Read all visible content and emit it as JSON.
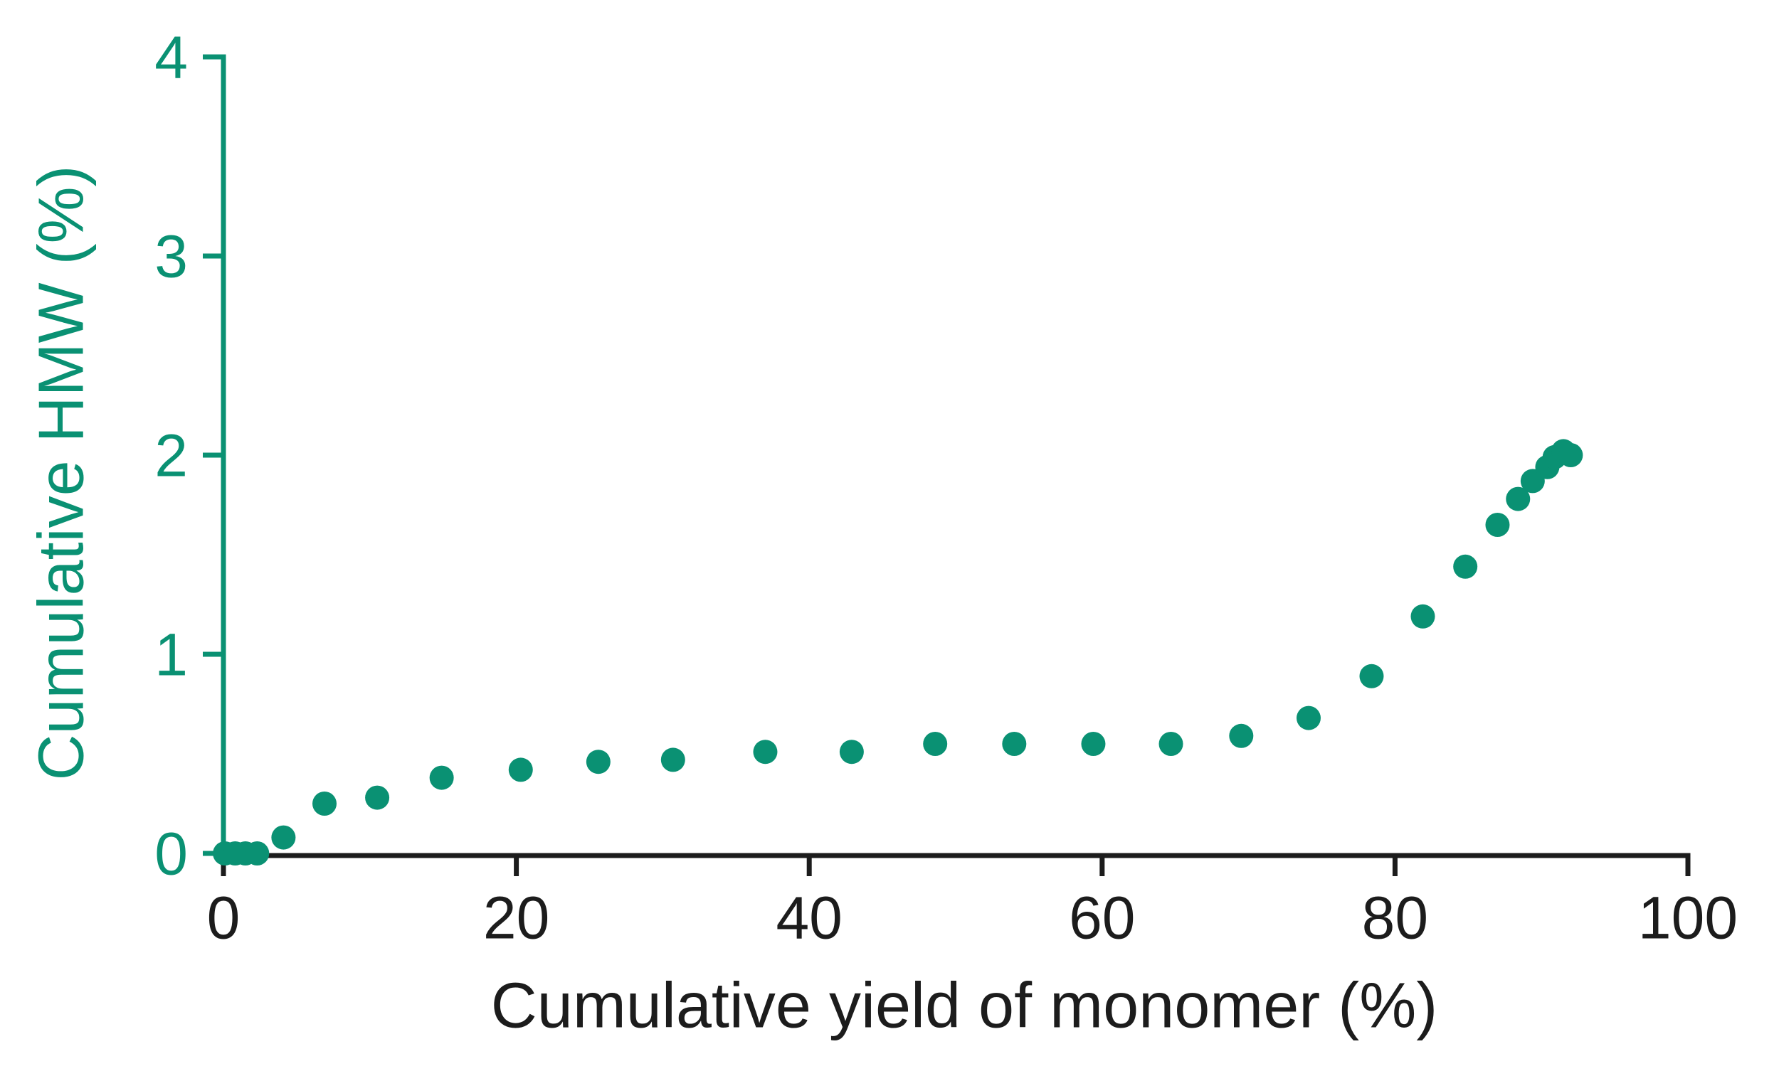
{
  "chart_data": {
    "type": "scatter",
    "title": "",
    "xlabel": "Cumulative yield of monomer (%)",
    "ylabel": "Cumulative HMW (%)",
    "xlim": [
      0,
      100
    ],
    "ylim": [
      0,
      4
    ],
    "xticks": [
      "0",
      "20",
      "40",
      "60",
      "80",
      "100"
    ],
    "yticks": [
      "0",
      "1",
      "2",
      "3",
      "4"
    ],
    "grid": false,
    "legend": null,
    "colors": {
      "accent_teal": "#0a9173",
      "axis_black": "#1c1c1c",
      "background": "#ffffff"
    },
    "series": [
      {
        "name": "Cumulative HMW",
        "marker": "circle",
        "marker_color": "#0a9173",
        "points": [
          [
            0.1,
            0.0
          ],
          [
            0.8,
            0.0
          ],
          [
            1.5,
            0.0
          ],
          [
            2.3,
            0.0
          ],
          [
            4.1,
            0.08
          ],
          [
            6.9,
            0.25
          ],
          [
            10.5,
            0.28
          ],
          [
            14.9,
            0.38
          ],
          [
            20.3,
            0.42
          ],
          [
            25.6,
            0.46
          ],
          [
            30.7,
            0.47
          ],
          [
            37.0,
            0.51
          ],
          [
            42.9,
            0.51
          ],
          [
            48.6,
            0.55
          ],
          [
            54.0,
            0.55
          ],
          [
            59.4,
            0.55
          ],
          [
            64.7,
            0.55
          ],
          [
            69.5,
            0.59
          ],
          [
            74.1,
            0.68
          ],
          [
            78.4,
            0.89
          ],
          [
            81.9,
            1.19
          ],
          [
            84.8,
            1.44
          ],
          [
            87.0,
            1.65
          ],
          [
            88.4,
            1.78
          ],
          [
            89.4,
            1.87
          ],
          [
            90.4,
            1.94
          ],
          [
            90.9,
            1.99
          ],
          [
            91.5,
            2.02
          ],
          [
            92.0,
            2.0
          ]
        ]
      }
    ]
  }
}
